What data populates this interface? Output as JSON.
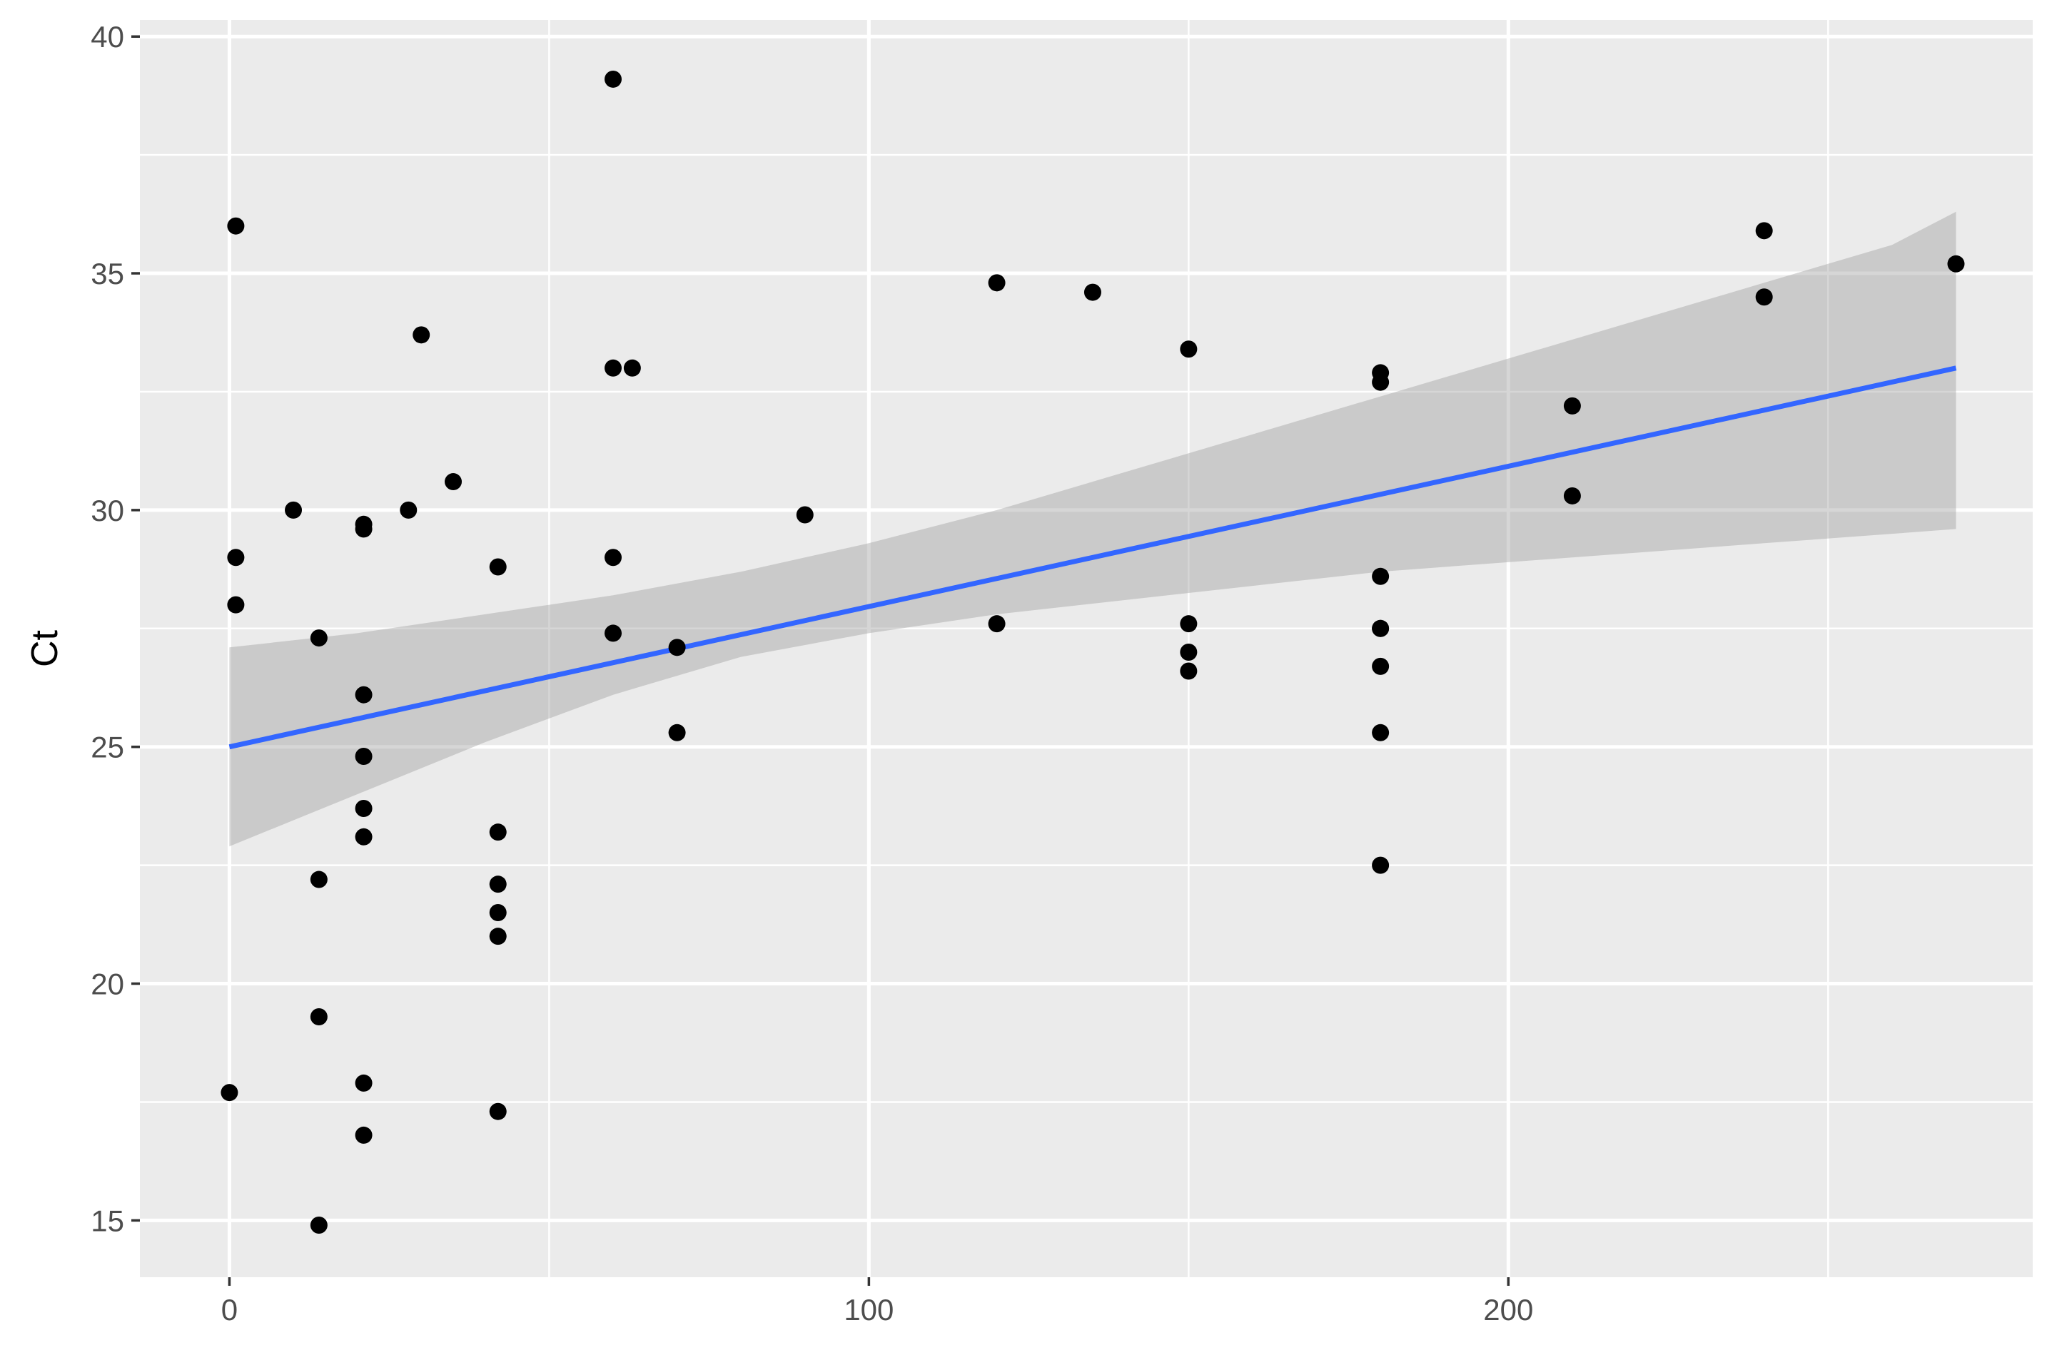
{
  "chart_data": {
    "type": "scatter",
    "title": "",
    "xlabel": "",
    "ylabel": "Ct",
    "xlim": [
      -14,
      282
    ],
    "ylim": [
      13.8,
      40.35
    ],
    "x_ticks": [
      0,
      100,
      200
    ],
    "y_ticks": [
      15,
      20,
      25,
      30,
      35,
      40
    ],
    "grid": true,
    "colors": {
      "panel_background": "#ebebeb",
      "grid": "#ffffff",
      "points": "#000000",
      "fit_line": "#3366ff",
      "confidence_band": "#999999",
      "tick_text": "#4d4d4d",
      "tick_marks": "#333333"
    },
    "series": [
      {
        "type": "points",
        "points": [
          {
            "x": 0,
            "y": 17.7
          },
          {
            "x": 1,
            "y": 36.0
          },
          {
            "x": 1,
            "y": 29.0
          },
          {
            "x": 1,
            "y": 28.0
          },
          {
            "x": 10,
            "y": 30.0
          },
          {
            "x": 14,
            "y": 27.3
          },
          {
            "x": 14,
            "y": 22.2
          },
          {
            "x": 14,
            "y": 19.3
          },
          {
            "x": 14,
            "y": 14.9
          },
          {
            "x": 21,
            "y": 29.7
          },
          {
            "x": 21,
            "y": 29.6
          },
          {
            "x": 21,
            "y": 26.1
          },
          {
            "x": 21,
            "y": 24.8
          },
          {
            "x": 21,
            "y": 23.7
          },
          {
            "x": 21,
            "y": 23.1
          },
          {
            "x": 21,
            "y": 17.9
          },
          {
            "x": 21,
            "y": 16.8
          },
          {
            "x": 28,
            "y": 30.0
          },
          {
            "x": 30,
            "y": 33.7
          },
          {
            "x": 35,
            "y": 30.6
          },
          {
            "x": 42,
            "y": 28.8
          },
          {
            "x": 42,
            "y": 23.2
          },
          {
            "x": 42,
            "y": 22.1
          },
          {
            "x": 42,
            "y": 21.5
          },
          {
            "x": 42,
            "y": 21.0
          },
          {
            "x": 42,
            "y": 17.3
          },
          {
            "x": 60,
            "y": 39.1
          },
          {
            "x": 60,
            "y": 33.0
          },
          {
            "x": 60,
            "y": 29.0
          },
          {
            "x": 60,
            "y": 27.4
          },
          {
            "x": 63,
            "y": 33.0
          },
          {
            "x": 70,
            "y": 27.1
          },
          {
            "x": 70,
            "y": 25.3
          },
          {
            "x": 90,
            "y": 29.9
          },
          {
            "x": 120,
            "y": 34.8
          },
          {
            "x": 120,
            "y": 27.6
          },
          {
            "x": 135,
            "y": 34.6
          },
          {
            "x": 150,
            "y": 33.4
          },
          {
            "x": 150,
            "y": 27.6
          },
          {
            "x": 150,
            "y": 27.0
          },
          {
            "x": 150,
            "y": 26.6
          },
          {
            "x": 180,
            "y": 32.9
          },
          {
            "x": 180,
            "y": 32.7
          },
          {
            "x": 180,
            "y": 28.6
          },
          {
            "x": 180,
            "y": 27.5
          },
          {
            "x": 180,
            "y": 27.5
          },
          {
            "x": 180,
            "y": 26.7
          },
          {
            "x": 180,
            "y": 25.3
          },
          {
            "x": 180,
            "y": 22.5
          },
          {
            "x": 210,
            "y": 32.2
          },
          {
            "x": 210,
            "y": 30.3
          },
          {
            "x": 240,
            "y": 35.9
          },
          {
            "x": 240,
            "y": 34.5
          },
          {
            "x": 270,
            "y": 35.2
          }
        ]
      },
      {
        "type": "line",
        "x": [
          0,
          270
        ],
        "y": [
          25.0,
          33.0
        ]
      },
      {
        "type": "area",
        "x": [
          0,
          20,
          40,
          60,
          80,
          100,
          120,
          140,
          160,
          180,
          200,
          220,
          240,
          260,
          270
        ],
        "lower": [
          22.9,
          24.0,
          25.1,
          26.1,
          26.9,
          27.4,
          27.8,
          28.1,
          28.4,
          28.7,
          28.9,
          29.1,
          29.3,
          29.5,
          29.6
        ],
        "upper": [
          27.1,
          27.4,
          27.8,
          28.2,
          28.7,
          29.3,
          30.0,
          30.8,
          31.6,
          32.4,
          33.2,
          34.0,
          34.8,
          35.6,
          36.3
        ]
      }
    ]
  }
}
